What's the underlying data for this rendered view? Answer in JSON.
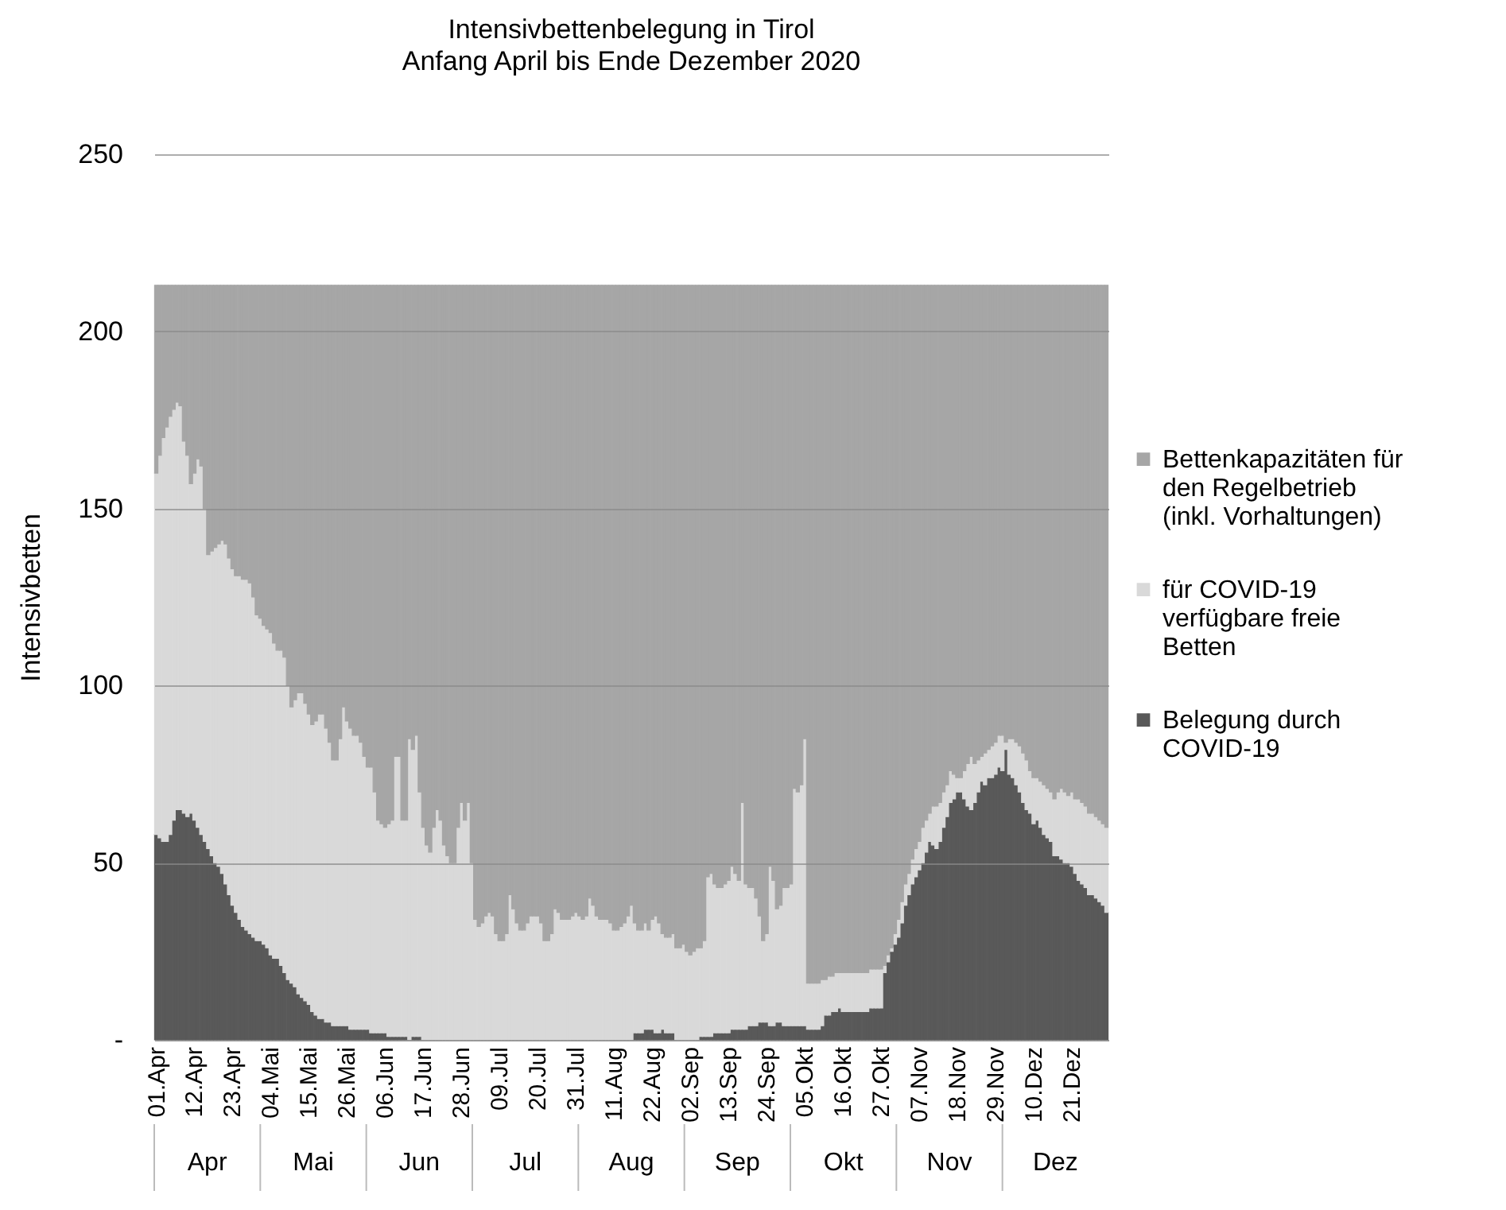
{
  "chart_data": {
    "type": "bar",
    "stacked": true,
    "title": "Intensivbettenbelegung in Tirol",
    "subtitle": "Anfang April bis Ende Dezember 2020",
    "ylabel": "Intensivbetten",
    "ylim": [
      0,
      250
    ],
    "yticks": [
      {
        "value": 0,
        "label": "-"
      },
      50,
      100,
      150,
      200,
      250
    ],
    "grid": "y",
    "legend": "right",
    "annotations": [
      "Apr",
      "Mai",
      "Jun",
      "Jul",
      "Aug",
      "Sep",
      "Okt",
      "Nov",
      "Dez"
    ],
    "categories": [
      "01.Apr",
      null,
      null,
      null,
      null,
      null,
      null,
      null,
      null,
      null,
      null,
      "12.Apr",
      null,
      null,
      null,
      null,
      null,
      null,
      null,
      null,
      null,
      null,
      "23.Apr",
      null,
      null,
      null,
      null,
      null,
      null,
      null,
      null,
      null,
      null,
      "04.Mai",
      null,
      null,
      null,
      null,
      null,
      null,
      null,
      null,
      null,
      null,
      "15.Mai",
      null,
      null,
      null,
      null,
      null,
      null,
      null,
      null,
      null,
      null,
      "26.Mai",
      null,
      null,
      null,
      null,
      null,
      null,
      null,
      null,
      null,
      null,
      "06.Jun",
      null,
      null,
      null,
      null,
      null,
      null,
      null,
      null,
      null,
      null,
      "17.Jun",
      null,
      null,
      null,
      null,
      null,
      null,
      null,
      null,
      null,
      null,
      "28.Jun",
      null,
      null,
      null,
      null,
      null,
      null,
      null,
      null,
      null,
      null,
      "09.Jul",
      null,
      null,
      null,
      null,
      null,
      null,
      null,
      null,
      null,
      null,
      "20.Jul",
      null,
      null,
      null,
      null,
      null,
      null,
      null,
      null,
      null,
      null,
      "31.Jul",
      null,
      null,
      null,
      null,
      null,
      null,
      null,
      null,
      null,
      null,
      "11.Aug",
      null,
      null,
      null,
      null,
      null,
      null,
      null,
      null,
      null,
      null,
      "22.Aug",
      null,
      null,
      null,
      null,
      null,
      null,
      null,
      null,
      null,
      null,
      "02.Sep",
      null,
      null,
      null,
      null,
      null,
      null,
      null,
      null,
      null,
      null,
      "13.Sep",
      null,
      null,
      null,
      null,
      null,
      null,
      null,
      null,
      null,
      null,
      "24.Sep",
      null,
      null,
      null,
      null,
      null,
      null,
      null,
      null,
      null,
      null,
      "05.Okt",
      null,
      null,
      null,
      null,
      null,
      null,
      null,
      null,
      null,
      null,
      "16.Okt",
      null,
      null,
      null,
      null,
      null,
      null,
      null,
      null,
      null,
      null,
      "27.Okt",
      null,
      null,
      null,
      null,
      null,
      null,
      null,
      null,
      null,
      null,
      "07.Nov",
      null,
      null,
      null,
      null,
      null,
      null,
      null,
      null,
      null,
      null,
      "18.Nov",
      null,
      null,
      null,
      null,
      null,
      null,
      null,
      null,
      null,
      null,
      "29.Nov",
      null,
      null,
      null,
      null,
      null,
      null,
      null,
      null,
      null,
      null,
      "10.Dez",
      null,
      null,
      null,
      null,
      null,
      null,
      null,
      null,
      null,
      null,
      "21.Dez",
      null,
      null,
      null,
      null,
      null,
      null,
      null,
      null,
      null,
      null
    ],
    "series": [
      {
        "name": "Belegung durch COVID-19",
        "color": "#595959",
        "values": [
          58,
          57,
          56,
          56,
          58,
          62,
          65,
          65,
          64,
          63,
          64,
          62,
          60,
          58,
          56,
          54,
          52,
          50,
          49,
          47,
          44,
          41,
          38,
          36,
          34,
          32,
          31,
          30,
          29,
          28,
          28,
          27,
          26,
          24,
          23,
          23,
          21,
          19,
          17,
          16,
          15,
          13,
          12,
          11,
          10,
          8,
          7,
          6,
          6,
          5,
          5,
          4,
          4,
          4,
          4,
          4,
          3,
          3,
          3,
          3,
          3,
          3,
          2,
          2,
          2,
          2,
          2,
          1,
          1,
          1,
          1,
          1,
          1,
          0,
          1,
          1,
          1,
          0,
          0,
          0,
          0,
          0,
          0,
          0,
          0,
          0,
          0,
          0,
          0,
          0,
          0,
          0,
          0,
          0,
          0,
          0,
          0,
          0,
          0,
          0,
          0,
          0,
          0,
          0,
          0,
          0,
          0,
          0,
          0,
          0,
          0,
          0,
          0,
          0,
          0,
          0,
          0,
          0,
          0,
          0,
          0,
          0,
          0,
          0,
          0,
          0,
          0,
          0,
          0,
          0,
          0,
          0,
          0,
          0,
          0,
          0,
          0,
          0,
          2,
          2,
          2,
          3,
          3,
          3,
          2,
          2,
          3,
          2,
          2,
          2,
          0,
          0,
          0,
          0,
          0,
          0,
          0,
          1,
          1,
          1,
          1,
          2,
          2,
          2,
          2,
          2,
          3,
          3,
          3,
          3,
          3,
          4,
          4,
          4,
          5,
          5,
          5,
          4,
          4,
          5,
          5,
          4,
          4,
          4,
          4,
          4,
          4,
          4,
          3,
          3,
          3,
          3,
          4,
          7,
          7,
          8,
          8,
          9,
          8,
          8,
          8,
          8,
          8,
          8,
          8,
          8,
          9,
          9,
          9,
          9,
          19,
          22,
          25,
          27,
          29,
          33,
          38,
          41,
          44,
          46,
          48,
          50,
          53,
          56,
          55,
          54,
          56,
          60,
          63,
          67,
          68,
          70,
          70,
          68,
          66,
          65,
          67,
          70,
          73,
          72,
          74,
          74,
          75,
          77,
          76,
          82,
          75,
          74,
          72,
          70,
          67,
          65,
          64,
          61,
          62,
          60,
          58,
          57,
          56,
          52,
          52,
          51,
          50,
          50,
          49,
          47,
          45,
          44,
          43,
          41,
          41,
          40,
          39,
          38,
          36
        ]
      },
      {
        "name": "für COVID-19 verfügbare freie Betten",
        "color": "#d9d9d9",
        "values": [
          102,
          108,
          114,
          117,
          118,
          116,
          115,
          114,
          105,
          102,
          93,
          98,
          104,
          104,
          94,
          83,
          86,
          89,
          91,
          94,
          96,
          95,
          95,
          95,
          97,
          98,
          99,
          99,
          96,
          92,
          91,
          90,
          90,
          91,
          89,
          87,
          89,
          89,
          83,
          78,
          81,
          85,
          86,
          84,
          82,
          81,
          83,
          86,
          86,
          83,
          79,
          75,
          75,
          81,
          90,
          86,
          85,
          83,
          83,
          81,
          77,
          74,
          75,
          68,
          60,
          59,
          58,
          60,
          61,
          79,
          79,
          61,
          61,
          85,
          81,
          85,
          69,
          60,
          55,
          53,
          60,
          65,
          62,
          55,
          52,
          50,
          50,
          60,
          67,
          62,
          67,
          50,
          34,
          32,
          33,
          35,
          36,
          35,
          30,
          28,
          28,
          30,
          41,
          37,
          33,
          31,
          31,
          33,
          35,
          35,
          35,
          33,
          28,
          28,
          30,
          37,
          36,
          34,
          34,
          34,
          35,
          36,
          35,
          34,
          35,
          40,
          38,
          35,
          34,
          34,
          34,
          33,
          31,
          31,
          32,
          33,
          35,
          38,
          31,
          29,
          29,
          30,
          28,
          31,
          33,
          31,
          27,
          27,
          27,
          28,
          26,
          26,
          27,
          25,
          24,
          25,
          26,
          25,
          27,
          45,
          46,
          42,
          41,
          41,
          42,
          43,
          46,
          44,
          42,
          64,
          41,
          39,
          39,
          36,
          30,
          23,
          25,
          45,
          41,
          32,
          33,
          39,
          39,
          40,
          67,
          66,
          68,
          81,
          13,
          13,
          13,
          13,
          13,
          10,
          11,
          10,
          11,
          10,
          11,
          11,
          11,
          11,
          11,
          11,
          11,
          11,
          11,
          11,
          11,
          11,
          2,
          2,
          1,
          3,
          5,
          6,
          6,
          6,
          7,
          8,
          8,
          10,
          9,
          8,
          11,
          12,
          11,
          10,
          9,
          9,
          7,
          4,
          4,
          8,
          12,
          15,
          11,
          9,
          7,
          9,
          8,
          9,
          9,
          9,
          10,
          2,
          10,
          11,
          12,
          13,
          14,
          14,
          12,
          13,
          12,
          13,
          14,
          14,
          14,
          16,
          18,
          20,
          20,
          19,
          21,
          21,
          23,
          23,
          23,
          23,
          23,
          23,
          23,
          23,
          24
        ]
      },
      {
        "name": "Bettenkapazitäten für den Regelbetrieb (inkl. Vorhaltungen)",
        "color": "#a6a6a6",
        "values": [
          53,
          48,
          43,
          40,
          37,
          35,
          33,
          34,
          44,
          48,
          56,
          53,
          49,
          51,
          63,
          76,
          75,
          74,
          73,
          72,
          73,
          77,
          80,
          82,
          82,
          83,
          83,
          84,
          88,
          93,
          94,
          96,
          97,
          98,
          101,
          103,
          103,
          105,
          113,
          119,
          117,
          115,
          115,
          118,
          121,
          124,
          123,
          121,
          121,
          125,
          129,
          134,
          134,
          128,
          119,
          123,
          125,
          127,
          127,
          129,
          133,
          136,
          136,
          143,
          151,
          152,
          153,
          152,
          151,
          133,
          133,
          151,
          151,
          128,
          131,
          127,
          143,
          153,
          158,
          160,
          153,
          148,
          151,
          158,
          161,
          163,
          163,
          153,
          146,
          151,
          146,
          163,
          179,
          181,
          180,
          178,
          177,
          178,
          183,
          185,
          185,
          183,
          172,
          176,
          180,
          182,
          182,
          180,
          178,
          178,
          178,
          180,
          185,
          185,
          183,
          176,
          177,
          179,
          179,
          179,
          178,
          177,
          178,
          179,
          178,
          173,
          175,
          178,
          179,
          179,
          179,
          180,
          182,
          182,
          181,
          180,
          178,
          175,
          180,
          182,
          182,
          180,
          182,
          179,
          178,
          180,
          183,
          184,
          184,
          183,
          187,
          187,
          186,
          188,
          189,
          188,
          187,
          187,
          185,
          167,
          166,
          169,
          170,
          170,
          169,
          168,
          164,
          166,
          168,
          146,
          169,
          170,
          170,
          173,
          178,
          185,
          183,
          164,
          168,
          176,
          175,
          170,
          170,
          169,
          142,
          143,
          141,
          128,
          197,
          197,
          197,
          197,
          196,
          196,
          195,
          195,
          194,
          194,
          194,
          194,
          194,
          194,
          194,
          194,
          194,
          194,
          193,
          193,
          193,
          193,
          192,
          189,
          187,
          183,
          179,
          174,
          169,
          166,
          162,
          159,
          157,
          153,
          151,
          149,
          147,
          147,
          146,
          143,
          141,
          137,
          138,
          139,
          139,
          137,
          135,
          133,
          135,
          134,
          133,
          132,
          131,
          130,
          129,
          127,
          127,
          129,
          128,
          128,
          129,
          130,
          132,
          134,
          137,
          139,
          139,
          140,
          141,
          142,
          143,
          145,
          143,
          142,
          143,
          144,
          143,
          145,
          145,
          146,
          147,
          149,
          149,
          150,
          151,
          152,
          153
        ]
      }
    ]
  }
}
